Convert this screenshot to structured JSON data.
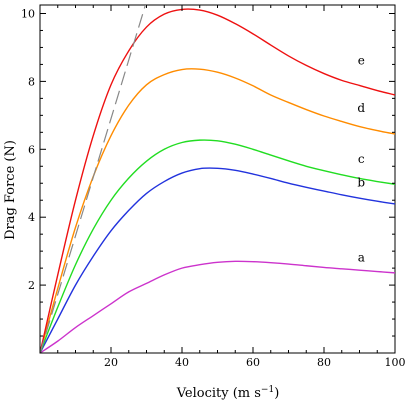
{
  "chart_data": {
    "type": "line",
    "title": "",
    "xlabel": "Velocity (m s",
    "xlabel_sup": "−1",
    "xlabel_close": ")",
    "ylabel": "Drag Force (N)",
    "xlim": [
      0,
      100
    ],
    "ylim": [
      0,
      10.25
    ],
    "xticks": [
      20,
      40,
      60,
      80,
      100
    ],
    "yticks": [
      2,
      4,
      6,
      8,
      10
    ],
    "grid": false,
    "series": [
      {
        "name": "a",
        "color": "#cc33cc",
        "points": [
          [
            0,
            0
          ],
          [
            5,
            0.35
          ],
          [
            10,
            0.75
          ],
          [
            15,
            1.1
          ],
          [
            20,
            1.45
          ],
          [
            25,
            1.8
          ],
          [
            30,
            2.05
          ],
          [
            35,
            2.3
          ],
          [
            40,
            2.5
          ],
          [
            45,
            2.6
          ],
          [
            50,
            2.67
          ],
          [
            55,
            2.7
          ],
          [
            60,
            2.69
          ],
          [
            65,
            2.66
          ],
          [
            70,
            2.62
          ],
          [
            75,
            2.57
          ],
          [
            80,
            2.52
          ],
          [
            85,
            2.48
          ],
          [
            90,
            2.44
          ],
          [
            95,
            2.4
          ],
          [
            100,
            2.36
          ]
        ]
      },
      {
        "name": "b",
        "color": "#2233dd",
        "points": [
          [
            0,
            0
          ],
          [
            5,
            1.0
          ],
          [
            10,
            2.0
          ],
          [
            15,
            2.85
          ],
          [
            20,
            3.6
          ],
          [
            25,
            4.2
          ],
          [
            30,
            4.7
          ],
          [
            35,
            5.05
          ],
          [
            40,
            5.3
          ],
          [
            45,
            5.43
          ],
          [
            50,
            5.44
          ],
          [
            55,
            5.38
          ],
          [
            60,
            5.27
          ],
          [
            65,
            5.14
          ],
          [
            70,
            5.0
          ],
          [
            75,
            4.88
          ],
          [
            80,
            4.77
          ],
          [
            85,
            4.66
          ],
          [
            90,
            4.56
          ],
          [
            95,
            4.47
          ],
          [
            100,
            4.39
          ]
        ]
      },
      {
        "name": "c",
        "color": "#22dd22",
        "points": [
          [
            0,
            0
          ],
          [
            5,
            1.35
          ],
          [
            10,
            2.6
          ],
          [
            15,
            3.65
          ],
          [
            20,
            4.5
          ],
          [
            25,
            5.15
          ],
          [
            30,
            5.65
          ],
          [
            35,
            6.0
          ],
          [
            40,
            6.2
          ],
          [
            45,
            6.27
          ],
          [
            50,
            6.25
          ],
          [
            55,
            6.15
          ],
          [
            60,
            6.0
          ],
          [
            65,
            5.83
          ],
          [
            70,
            5.66
          ],
          [
            75,
            5.5
          ],
          [
            80,
            5.37
          ],
          [
            85,
            5.25
          ],
          [
            90,
            5.14
          ],
          [
            95,
            5.05
          ],
          [
            100,
            4.97
          ]
        ]
      },
      {
        "name": "d",
        "color": "#ff8c00",
        "points": [
          [
            0,
            0
          ],
          [
            5,
            1.9
          ],
          [
            10,
            3.7
          ],
          [
            15,
            5.2
          ],
          [
            20,
            6.4
          ],
          [
            25,
            7.3
          ],
          [
            30,
            7.9
          ],
          [
            35,
            8.2
          ],
          [
            40,
            8.35
          ],
          [
            45,
            8.36
          ],
          [
            50,
            8.27
          ],
          [
            55,
            8.1
          ],
          [
            60,
            7.87
          ],
          [
            65,
            7.6
          ],
          [
            70,
            7.38
          ],
          [
            75,
            7.17
          ],
          [
            80,
            6.98
          ],
          [
            85,
            6.82
          ],
          [
            90,
            6.67
          ],
          [
            95,
            6.55
          ],
          [
            100,
            6.45
          ]
        ]
      },
      {
        "name": "e",
        "color": "#ee1111",
        "points": [
          [
            0,
            0
          ],
          [
            5,
            2.3
          ],
          [
            10,
            4.5
          ],
          [
            15,
            6.4
          ],
          [
            20,
            7.9
          ],
          [
            25,
            8.9
          ],
          [
            30,
            9.6
          ],
          [
            35,
            9.98
          ],
          [
            40,
            10.12
          ],
          [
            45,
            10.1
          ],
          [
            50,
            9.95
          ],
          [
            55,
            9.7
          ],
          [
            60,
            9.4
          ],
          [
            65,
            9.07
          ],
          [
            70,
            8.75
          ],
          [
            75,
            8.47
          ],
          [
            80,
            8.23
          ],
          [
            85,
            8.03
          ],
          [
            90,
            7.88
          ],
          [
            95,
            7.73
          ],
          [
            100,
            7.6
          ]
        ]
      },
      {
        "name": "",
        "color": "#888888",
        "dashed": true,
        "points": [
          [
            0,
            0
          ],
          [
            31,
            10.7
          ]
        ]
      }
    ],
    "curve_labels": [
      {
        "text": "a",
        "x": 90.5,
        "y": 2.7
      },
      {
        "text": "b",
        "x": 90.5,
        "y": 4.9
      },
      {
        "text": "c",
        "x": 90.5,
        "y": 5.6
      },
      {
        "text": "d",
        "x": 90.5,
        "y": 7.1
      },
      {
        "text": "e",
        "x": 90.5,
        "y": 8.5
      }
    ]
  }
}
